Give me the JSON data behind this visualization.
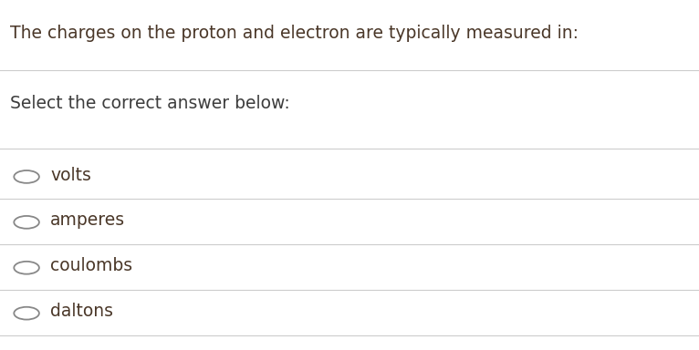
{
  "title": "The charges on the proton and electron are typically measured in:",
  "subtitle": "Select the correct answer below:",
  "options": [
    "volts",
    "amperes",
    "coulombs",
    "daltons"
  ],
  "title_color": "#4a3728",
  "subtitle_color": "#3d3d3d",
  "option_color": "#4a3728",
  "background_color": "#ffffff",
  "line_color": "#cccccc",
  "circle_color": "#888888",
  "title_fontsize": 13.5,
  "subtitle_fontsize": 13.5,
  "option_fontsize": 13.5,
  "fig_width": 7.66,
  "fig_height": 3.84
}
